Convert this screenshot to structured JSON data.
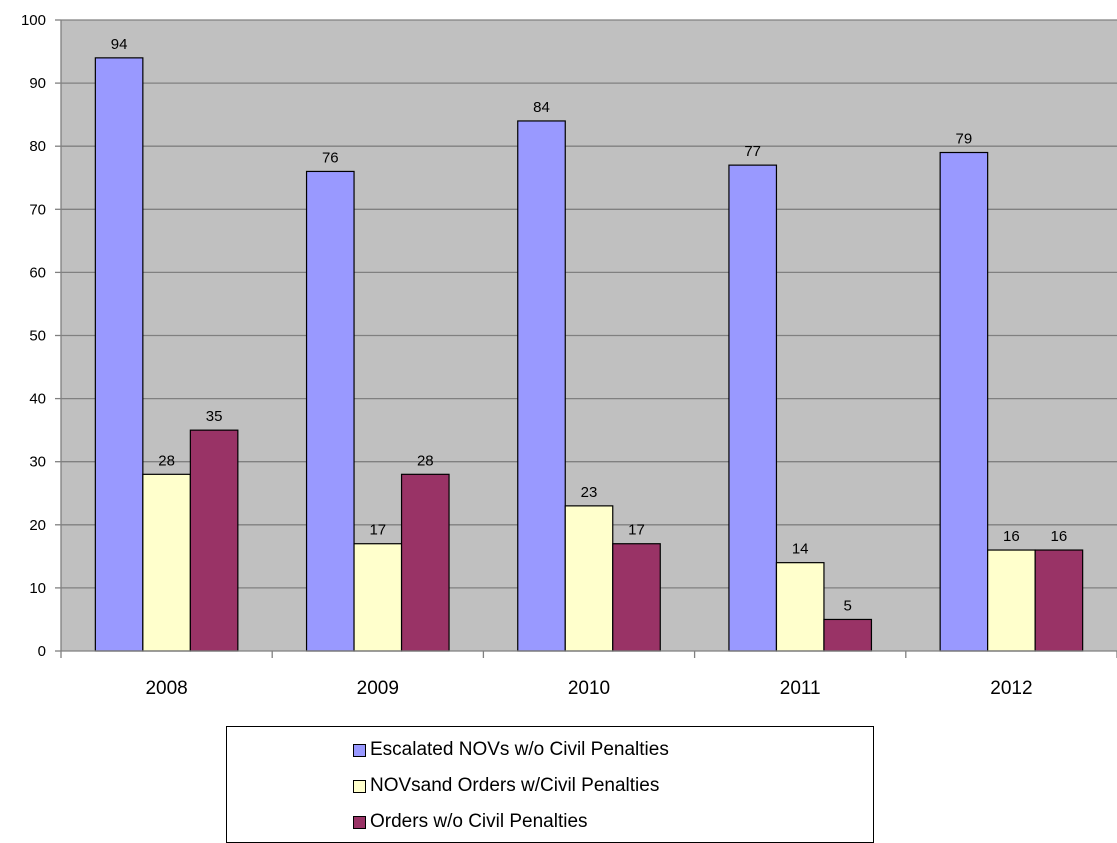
{
  "chart_data": {
    "type": "bar",
    "categories": [
      "2008",
      "2009",
      "2010",
      "2011",
      "2012"
    ],
    "series": [
      {
        "name": "Escalated NOVs w/o Civil Penalties",
        "color": "#9999FF",
        "values": [
          94,
          76,
          84,
          77,
          79
        ]
      },
      {
        "name": "NOVsand Orders w/Civil Penalties",
        "color": "#FFFFCC",
        "values": [
          28,
          17,
          23,
          14,
          16
        ]
      },
      {
        "name": "Orders w/o Civil Penalties",
        "color": "#993366",
        "values": [
          35,
          28,
          17,
          5,
          16
        ]
      }
    ],
    "ylim": [
      0,
      100
    ],
    "yticks": [
      0,
      10,
      20,
      30,
      40,
      50,
      60,
      70,
      80,
      90,
      100
    ],
    "grid": true,
    "plot_background": "#C0C0C0",
    "data_labels": true,
    "legend_position": "bottom"
  }
}
